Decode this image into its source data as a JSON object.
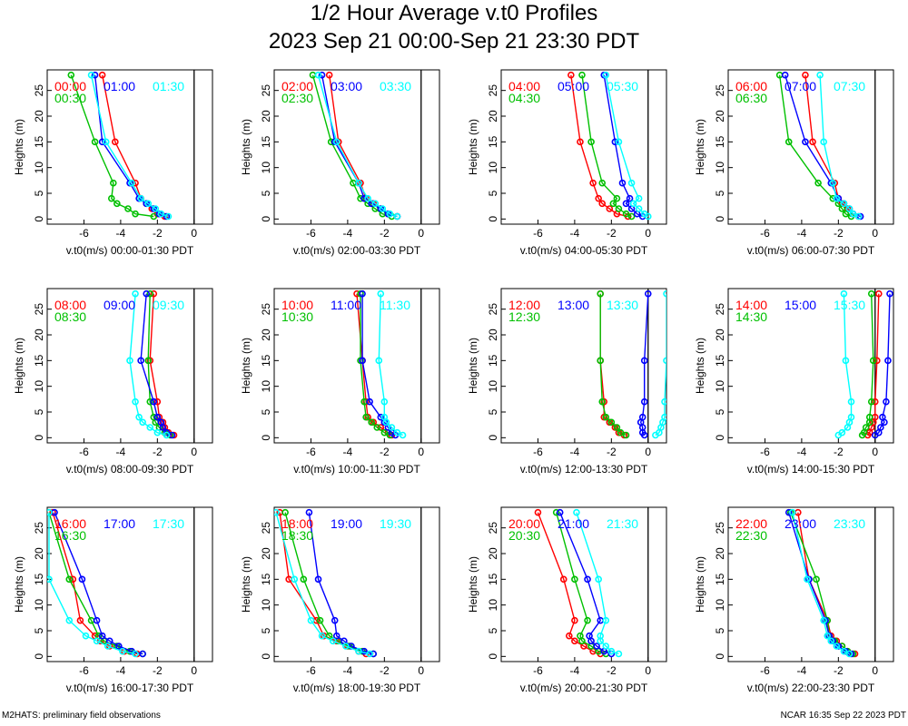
{
  "title_line1": "1/2 Hour Average v.t0 Profiles",
  "title_line2": "2023 Sep 21 00:00-Sep 21 23:30 PDT",
  "footer_left": "M2HATS: preliminary field observations",
  "footer_right": "NCAR 16:35 Sep 22 2023 PDT",
  "colors": {
    "c0": "#ff0000",
    "c1": "#00c000",
    "c2": "#0000ff",
    "c3": "#00ffff"
  },
  "chart_data": {
    "type": "line",
    "shared": {
      "ylabel": "Heights (m)",
      "xlim": [
        -8,
        1
      ],
      "ylim": [
        -1,
        29
      ],
      "xticks": [
        -6,
        -4,
        -2,
        0
      ],
      "yticks": [
        0,
        5,
        10,
        15,
        20,
        25
      ],
      "heights": [
        0.5,
        1,
        2,
        3,
        4,
        7,
        15,
        28
      ]
    },
    "panels": [
      {
        "xlabel": "v.t0(m/s) 00:00-01:30 PDT",
        "legend": [
          "00:00",
          "00:30",
          "01:00",
          "01:30"
        ],
        "series": [
          {
            "name": "00:00",
            "values": [
              -1.6,
              -2.0,
              -2.3,
              -2.6,
              -2.9,
              -3.2,
              -4.3,
              -5.0
            ]
          },
          {
            "name": "00:30",
            "values": [
              -2.2,
              -3.2,
              -3.6,
              -4.2,
              -4.5,
              -4.4,
              -5.4,
              -6.7
            ]
          },
          {
            "name": "01:00",
            "values": [
              -1.5,
              -1.9,
              -2.2,
              -2.6,
              -3.0,
              -3.5,
              -5.0,
              -5.4
            ]
          },
          {
            "name": "01:30",
            "values": [
              -1.4,
              -1.8,
              -2.1,
              -2.5,
              -2.9,
              -3.4,
              -4.8,
              -5.6
            ]
          }
        ]
      },
      {
        "xlabel": "v.t0(m/s) 02:00-03:30 PDT",
        "legend": [
          "02:00",
          "02:30",
          "03:00",
          "03:30"
        ],
        "series": [
          {
            "name": "02:00",
            "values": [
              -1.3,
              -1.8,
              -2.2,
              -2.6,
              -3.0,
              -3.3,
              -4.5,
              -5.0
            ]
          },
          {
            "name": "02:30",
            "values": [
              -1.6,
              -2.1,
              -2.5,
              -2.9,
              -3.3,
              -3.7,
              -4.9,
              -5.9
            ]
          },
          {
            "name": "03:00",
            "values": [
              -1.3,
              -1.8,
              -2.2,
              -2.7,
              -3.1,
              -3.4,
              -4.7,
              -5.4
            ]
          },
          {
            "name": "03:30",
            "values": [
              -1.3,
              -1.7,
              -2.1,
              -2.5,
              -2.9,
              -3.4,
              -4.6,
              -5.6
            ]
          }
        ]
      },
      {
        "xlabel": "v.t0(m/s) 04:00-05:30 PDT",
        "legend": [
          "04:00",
          "04:30",
          "05:00",
          "05:30"
        ],
        "series": [
          {
            "name": "04:00",
            "values": [
              -1.1,
              -1.7,
              -2.1,
              -2.5,
              -2.7,
              -3.0,
              -3.7,
              -4.2
            ]
          },
          {
            "name": "04:30",
            "values": [
              -0.9,
              -1.2,
              -1.6,
              -1.9,
              -1.7,
              -2.5,
              -3.1,
              -3.6
            ]
          },
          {
            "name": "05:00",
            "values": [
              -0.3,
              -0.6,
              -0.9,
              -1.2,
              -1.0,
              -1.4,
              -1.8,
              -2.4
            ]
          },
          {
            "name": "05:30",
            "values": [
              0.0,
              -0.2,
              -0.5,
              -0.8,
              -0.5,
              -0.9,
              -1.6,
              -2.3
            ]
          }
        ]
      },
      {
        "xlabel": "v.t0(m/s) 06:00-07:30 PDT",
        "legend": [
          "06:00",
          "06:30",
          "07:00",
          "07:30"
        ],
        "series": [
          {
            "name": "06:00",
            "values": [
              -0.9,
              -1.2,
              -1.5,
              -1.8,
              -2.0,
              -2.2,
              -3.4,
              -3.8
            ]
          },
          {
            "name": "06:30",
            "values": [
              -1.3,
              -1.6,
              -1.8,
              -2.0,
              -2.3,
              -3.1,
              -4.7,
              -5.2
            ]
          },
          {
            "name": "07:00",
            "values": [
              -0.8,
              -1.2,
              -1.4,
              -1.7,
              -2.0,
              -2.4,
              -3.8,
              -4.9
            ]
          },
          {
            "name": "07:30",
            "values": [
              -0.9,
              -1.2,
              -1.4,
              -1.7,
              -2.1,
              -2.3,
              -2.8,
              -3.0
            ]
          }
        ]
      },
      {
        "xlabel": "v.t0(m/s) 08:00-09:30 PDT",
        "legend": [
          "08:00",
          "08:30",
          "09:00",
          "09:30"
        ],
        "series": [
          {
            "name": "08:00",
            "values": [
              -1.1,
              -1.4,
              -1.6,
              -1.7,
              -1.9,
              -2.0,
              -2.4,
              -2.2
            ]
          },
          {
            "name": "08:30",
            "values": [
              -1.3,
              -1.6,
              -1.9,
              -2.1,
              -2.2,
              -2.4,
              -2.5,
              -2.4
            ]
          },
          {
            "name": "09:00",
            "values": [
              -1.2,
              -1.5,
              -1.7,
              -1.8,
              -2.0,
              -2.2,
              -2.9,
              -2.6
            ]
          },
          {
            "name": "09:30",
            "values": [
              -1.5,
              -2.0,
              -2.4,
              -2.8,
              -3.0,
              -3.2,
              -3.5,
              -3.2
            ]
          }
        ]
      },
      {
        "xlabel": "v.t0(m/s) 10:00-11:30 PDT",
        "legend": [
          "10:00",
          "10:30",
          "11:00",
          "11:30"
        ],
        "series": [
          {
            "name": "10:00",
            "values": [
              -1.6,
              -1.8,
              -2.2,
              -2.6,
              -2.9,
              -3.0,
              -3.2,
              -3.5
            ]
          },
          {
            "name": "10:30",
            "values": [
              -1.7,
              -2.0,
              -2.4,
              -2.7,
              -3.0,
              -3.1,
              -3.3,
              -3.3
            ]
          },
          {
            "name": "11:00",
            "values": [
              -1.4,
              -1.6,
              -1.8,
              -2.0,
              -2.2,
              -2.8,
              -3.2,
              -3.2
            ]
          },
          {
            "name": "11:30",
            "values": [
              -1.0,
              -1.3,
              -1.6,
              -1.9,
              -2.0,
              -2.0,
              -2.3,
              -2.2
            ]
          }
        ]
      },
      {
        "xlabel": "v.t0(m/s) 12:00-13:30 PDT",
        "legend": [
          "12:00",
          "12:30",
          "13:00",
          "13:30"
        ],
        "series": [
          {
            "name": "12:00",
            "values": [
              -1.3,
              -1.6,
              -1.8,
              -2.1,
              -2.4,
              -2.4,
              -2.6,
              -2.6
            ]
          },
          {
            "name": "12:30",
            "values": [
              -1.2,
              -1.5,
              -1.7,
              -2.0,
              -2.3,
              -2.5,
              -2.6,
              -2.6
            ]
          },
          {
            "name": "13:00",
            "values": [
              -0.2,
              -0.3,
              -0.3,
              -0.4,
              -0.3,
              -0.2,
              -0.2,
              0.0
            ]
          },
          {
            "name": "13:30",
            "values": [
              0.4,
              0.6,
              0.7,
              0.8,
              0.9,
              0.9,
              1.0,
              1.0
            ]
          }
        ]
      },
      {
        "xlabel": "v.t0(m/s) 14:00-15:30 PDT",
        "legend": [
          "14:00",
          "14:30",
          "15:00",
          "15:30"
        ],
        "series": [
          {
            "name": "14:00",
            "values": [
              -0.4,
              -0.3,
              -0.2,
              -0.1,
              0.0,
              0.0,
              0.1,
              0.2
            ]
          },
          {
            "name": "14:30",
            "values": [
              -0.7,
              -0.6,
              -0.5,
              -0.3,
              -0.3,
              -0.2,
              -0.1,
              -0.2
            ]
          },
          {
            "name": "15:00",
            "values": [
              0.0,
              0.2,
              0.3,
              0.5,
              0.4,
              0.6,
              0.7,
              0.8
            ]
          },
          {
            "name": "15:30",
            "values": [
              -2.0,
              -1.8,
              -1.5,
              -1.4,
              -1.3,
              -1.3,
              -1.6,
              -1.7
            ]
          }
        ]
      },
      {
        "xlabel": "v.t0(m/s) 16:00-17:30 PDT",
        "legend": [
          "16:00",
          "16:30",
          "17:00",
          "17:30"
        ],
        "series": [
          {
            "name": "16:00",
            "values": [
              -3.1,
              -3.8,
              -4.6,
              -5.1,
              -5.4,
              -6.2,
              -6.6,
              -7.7
            ]
          },
          {
            "name": "16:30",
            "values": [
              -2.8,
              -3.5,
              -4.2,
              -4.9,
              -5.2,
              -5.6,
              -6.8,
              -7.9
            ]
          },
          {
            "name": "17:00",
            "values": [
              -2.8,
              -3.4,
              -4.1,
              -4.6,
              -5.0,
              -5.3,
              -6.1,
              -7.6
            ]
          },
          {
            "name": "17:30",
            "values": [
              -3.2,
              -3.9,
              -4.7,
              -5.3,
              -5.9,
              -6.8,
              -7.9,
              -7.9
            ]
          }
        ]
      },
      {
        "xlabel": "v.t0(m/s) 18:00-19:30 PDT",
        "legend": [
          "18:00",
          "18:30",
          "19:00",
          "19:30"
        ],
        "series": [
          {
            "name": "18:00",
            "values": [
              -3.0,
              -3.4,
              -4.0,
              -4.6,
              -5.3,
              -5.7,
              -7.2,
              -7.7
            ]
          },
          {
            "name": "18:30",
            "values": [
              -2.6,
              -3.2,
              -3.9,
              -4.5,
              -5.0,
              -5.5,
              -6.4,
              -7.4
            ]
          },
          {
            "name": "19:00",
            "values": [
              -2.6,
              -3.1,
              -3.8,
              -4.2,
              -4.6,
              -4.7,
              -5.6,
              -6.1
            ]
          },
          {
            "name": "19:30",
            "values": [
              -2.8,
              -3.4,
              -4.1,
              -4.8,
              -5.4,
              -6.0,
              -6.9,
              -7.9
            ]
          }
        ]
      },
      {
        "xlabel": "v.t0(m/s) 20:00-21:30 PDT",
        "legend": [
          "20:00",
          "20:30",
          "21:00",
          "21:30"
        ],
        "series": [
          {
            "name": "20:00",
            "values": [
              -2.6,
              -3.0,
              -3.5,
              -4.0,
              -4.3,
              -4.0,
              -4.6,
              -6.0
            ]
          },
          {
            "name": "20:30",
            "values": [
              -2.3,
              -2.7,
              -3.1,
              -3.6,
              -3.7,
              -3.3,
              -4.0,
              -5.0
            ]
          },
          {
            "name": "21:00",
            "values": [
              -2.0,
              -2.4,
              -2.8,
              -3.1,
              -3.2,
              -2.6,
              -3.3,
              -4.8
            ]
          },
          {
            "name": "21:30",
            "values": [
              -1.6,
              -2.0,
              -2.3,
              -2.6,
              -2.6,
              -2.3,
              -2.7,
              -3.9
            ]
          }
        ]
      },
      {
        "xlabel": "v.t0(m/s) 22:00-23:30 PDT",
        "legend": [
          "22:00",
          "22:30",
          "23:00",
          "23:30"
        ],
        "series": [
          {
            "name": "22:00",
            "values": [
              -1.1,
              -1.5,
              -1.8,
              -2.1,
              -2.4,
              -2.6,
              -3.6,
              -4.2
            ]
          },
          {
            "name": "22:30",
            "values": [
              -1.2,
              -1.5,
              -1.8,
              -2.2,
              -2.5,
              -2.6,
              -3.2,
              -4.6
            ]
          },
          {
            "name": "23:00",
            "values": [
              -1.3,
              -1.6,
              -2.0,
              -2.3,
              -2.5,
              -2.7,
              -3.6,
              -4.7
            ]
          },
          {
            "name": "23:30",
            "values": [
              -1.4,
              -1.7,
              -2.1,
              -2.4,
              -2.6,
              -2.8,
              -3.7,
              -4.5
            ]
          }
        ]
      }
    ]
  }
}
